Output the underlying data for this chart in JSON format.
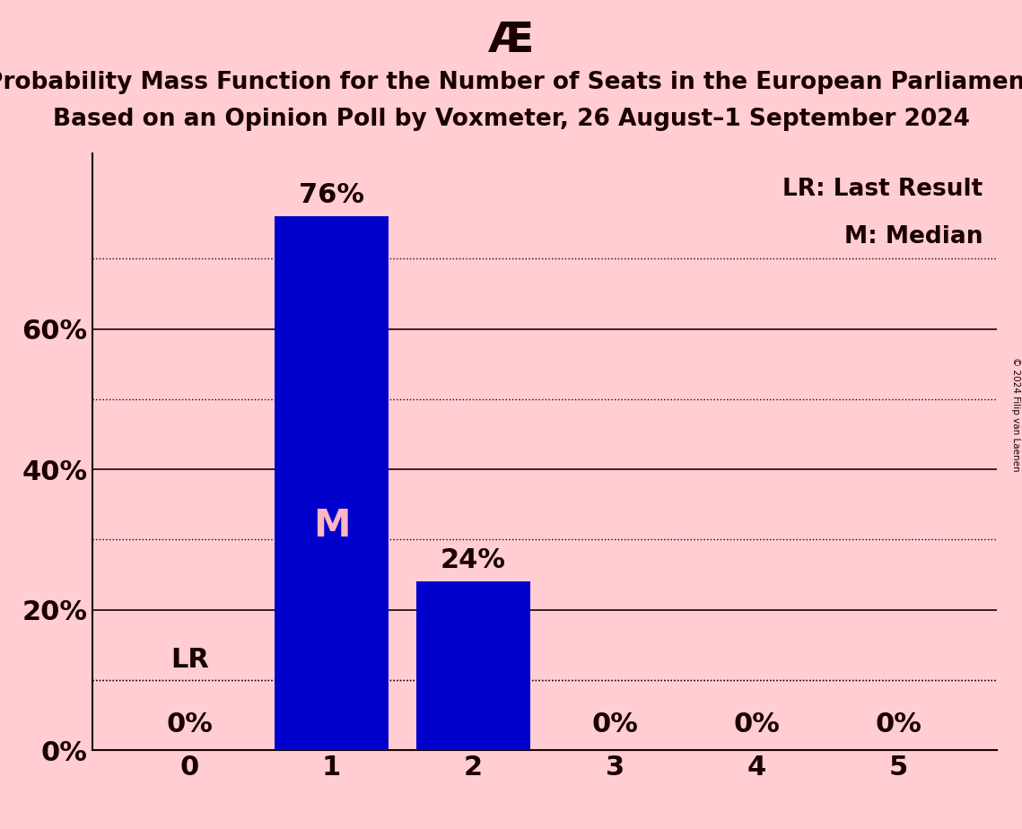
{
  "title_symbol": "Æ",
  "title_line1": "Probability Mass Function for the Number of Seats in the European Parliament",
  "title_line2": "Based on an Opinion Poll by Voxmeter, 26 August–1 September 2024",
  "categories": [
    0,
    1,
    2,
    3,
    4,
    5
  ],
  "values": [
    0,
    76,
    24,
    0,
    0,
    0
  ],
  "bar_color": "#0000CC",
  "background_color": "#FFCDD2",
  "text_color": "#1a0000",
  "bar_label_color_inside": "#FFB6C1",
  "median_bar": 1,
  "lr_bar": 0,
  "lr_label": "LR",
  "median_label": "M",
  "legend_lr": "LR: Last Result",
  "legend_m": "M: Median",
  "lr_value": 10,
  "yticks": [
    0,
    20,
    40,
    60
  ],
  "ytick_labels": [
    "0%",
    "20%",
    "40%",
    "60%"
  ],
  "solid_gridlines": [
    0,
    20,
    40,
    60
  ],
  "dotted_gridlines": [
    10,
    30,
    50,
    70
  ],
  "ylim": [
    0,
    85
  ],
  "copyright": "© 2024 Filip van Laenen",
  "title_fontsize": 34,
  "subtitle_fontsize": 19,
  "bar_label_fontsize": 22,
  "tick_fontsize": 22,
  "legend_fontsize": 19,
  "inside_label_fontsize": 30
}
